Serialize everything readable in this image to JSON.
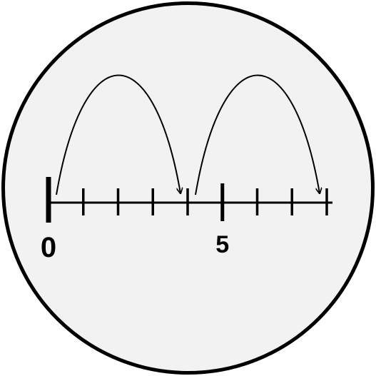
{
  "number_line": {
    "min": 0,
    "max": 8,
    "labels": [
      {
        "value": 0,
        "text": "0"
      },
      {
        "value": 5,
        "text": "5"
      }
    ],
    "jumps": [
      {
        "from": 0,
        "to": 4
      },
      {
        "from": 4,
        "to": 8
      }
    ]
  },
  "colors": {
    "background": "#f2f2f2",
    "stroke": "#000000"
  }
}
